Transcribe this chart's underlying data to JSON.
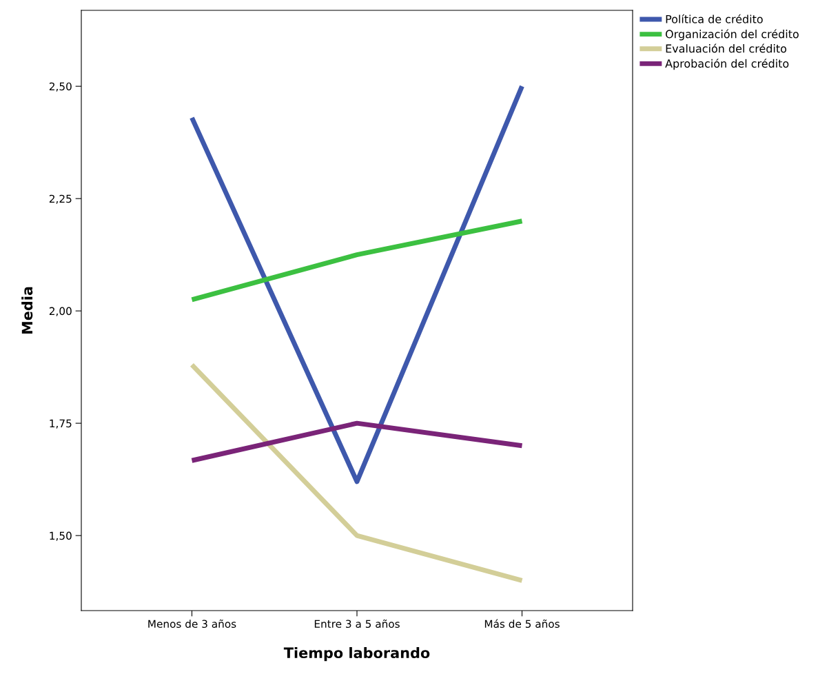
{
  "chart_data": {
    "type": "line",
    "xlabel": "Tiempo laborando",
    "ylabel": "Media",
    "categories": [
      "Menos de 3 años",
      "Entre 3 a 5 años",
      "Más de 5 años"
    ],
    "series": [
      {
        "name": "Política de crédito",
        "color": "#3e58ac",
        "values": [
          2.43,
          1.62,
          2.5
        ]
      },
      {
        "name": "Organización del crédito",
        "color": "#3cc041",
        "values": [
          2.025,
          2.125,
          2.2
        ]
      },
      {
        "name": "Evaluación del crédito",
        "color": "#d3ce98",
        "values": [
          1.88,
          1.5,
          1.4
        ]
      },
      {
        "name": "Aprobación del crédito",
        "color": "#7a2478",
        "values": [
          1.667,
          1.75,
          1.7
        ]
      }
    ],
    "ylim": [
      1.333,
      2.669
    ],
    "yticks": [
      {
        "value": 1.5,
        "label": "1,50"
      },
      {
        "value": 1.75,
        "label": "1,75"
      },
      {
        "value": 2.0,
        "label": "2,00"
      },
      {
        "value": 2.25,
        "label": "2,25"
      },
      {
        "value": 2.5,
        "label": "2,50"
      }
    ],
    "grid": false,
    "legend": "top right",
    "marker": "none",
    "line_style": "solid"
  }
}
